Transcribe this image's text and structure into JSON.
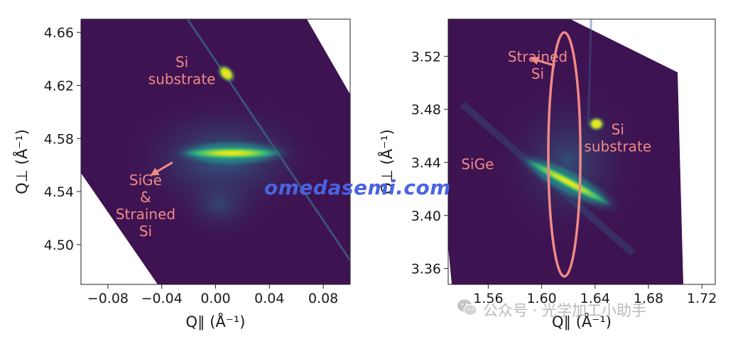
{
  "chart_data": [
    {
      "type": "heatmap",
      "xlabel": "Q∥ (Å⁻¹)",
      "ylabel": "Q⊥ (Å⁻¹)",
      "xlim": [
        -0.1,
        0.1
      ],
      "ylim": [
        4.47,
        4.67
      ],
      "xticks": [
        "−0.08",
        "−0.04",
        "0.00",
        "0.04",
        "0.08"
      ],
      "xtick_values": [
        -0.08,
        -0.04,
        0.0,
        0.04,
        0.08
      ],
      "yticks": [
        "4.50",
        "4.54",
        "4.58",
        "4.62",
        "4.66"
      ],
      "ytick_values": [
        4.5,
        4.54,
        4.58,
        4.62,
        4.66
      ],
      "annotations": [
        {
          "lines": [
            "Si",
            "substrate"
          ],
          "x": -0.025,
          "y": 4.634
        },
        {
          "lines": [
            "SiGe",
            "&",
            "Strained",
            "Si"
          ],
          "x": -0.052,
          "y": 4.545
        }
      ],
      "peaks": [
        {
          "name": "Si substrate",
          "x": 0.008,
          "y": 4.629
        },
        {
          "name": "SiGe & Strained Si",
          "x": 0.012,
          "y": 4.569
        }
      ],
      "colormap": "viridis",
      "grid": false
    },
    {
      "type": "heatmap",
      "xlabel": "Q∥ (Å⁻¹)",
      "ylabel": "Q⊥ (Å⁻¹)",
      "xlim": [
        1.53,
        1.73
      ],
      "ylim": [
        3.348,
        3.548
      ],
      "xticks": [
        "1.56",
        "1.60",
        "1.64",
        "1.68",
        "1.72"
      ],
      "xtick_values": [
        1.56,
        1.6,
        1.64,
        1.68,
        1.72
      ],
      "yticks": [
        "3.36",
        "3.40",
        "3.44",
        "3.48",
        "3.52"
      ],
      "ytick_values": [
        3.36,
        3.4,
        3.44,
        3.48,
        3.52
      ],
      "annotations": [
        {
          "lines": [
            "Strained",
            "Si"
          ],
          "x": 1.597,
          "y": 3.516
        },
        {
          "lines": [
            "Si",
            "substrate"
          ],
          "x": 1.657,
          "y": 3.461
        },
        {
          "lines": [
            "SiGe"
          ],
          "x": 1.552,
          "y": 3.435
        }
      ],
      "peaks": [
        {
          "name": "Si substrate",
          "x": 1.641,
          "y": 3.469
        },
        {
          "name": "SiGe",
          "x": 1.62,
          "y": 3.425
        }
      ],
      "highlight_ellipse": {
        "cx": 1.617,
        "cy": 3.446,
        "rx": 0.012,
        "ry": 0.092
      },
      "colormap": "viridis",
      "grid": false
    }
  ],
  "watermarks": {
    "site": "omedasemi.com",
    "wechat": "公众号 · 光学加工小助手"
  },
  "colors": {
    "annotation": "#f08a86",
    "background": "#3e1352",
    "watermark_site": "#4a63e0"
  }
}
